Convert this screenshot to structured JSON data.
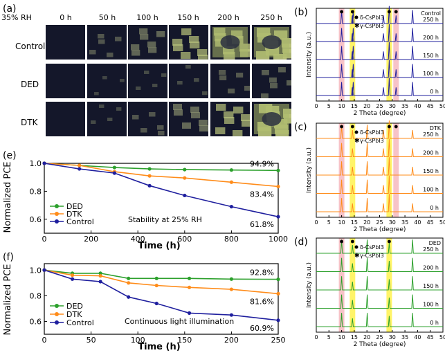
{
  "panel_a": {
    "letter": "(a)",
    "rh_label": "35% RH",
    "times": [
      "0 h",
      "50 h",
      "100 h",
      "150 h",
      "200 h",
      "250 h"
    ],
    "rows": [
      "Control",
      "DED",
      "DTK"
    ]
  },
  "chart_data": [
    {
      "id": "e",
      "type": "line",
      "letter": "(e)",
      "ylabel": "Normalized PCE",
      "xlabel": "Time (h)",
      "xlim": [
        0,
        1000
      ],
      "ylim": [
        0.5,
        1.0
      ],
      "xticks": [
        "0",
        "200",
        "400",
        "600",
        "800",
        "1000"
      ],
      "yticks": [
        "0.6",
        "0.8",
        "1.0"
      ],
      "annotation": "Stability at 25% RH",
      "series": [
        {
          "name": "DED",
          "color": "#2ca02c",
          "x": [
            0,
            150,
            300,
            450,
            600,
            800,
            1000
          ],
          "values": [
            1.0,
            0.985,
            0.97,
            0.96,
            0.955,
            0.952,
            0.949
          ],
          "end_label": "94.9%"
        },
        {
          "name": "DTK",
          "color": "#ff8c1a",
          "x": [
            0,
            150,
            300,
            450,
            600,
            800,
            1000
          ],
          "values": [
            1.0,
            0.985,
            0.94,
            0.91,
            0.895,
            0.865,
            0.834
          ],
          "end_label": "83.4%"
        },
        {
          "name": "Control",
          "color": "#1f1f9e",
          "x": [
            0,
            150,
            300,
            450,
            600,
            800,
            1000
          ],
          "values": [
            1.0,
            0.96,
            0.93,
            0.84,
            0.77,
            0.69,
            0.618
          ],
          "end_label": "61.8%"
        }
      ]
    },
    {
      "id": "f",
      "type": "line",
      "letter": "(f)",
      "ylabel": "Normalized PCE",
      "xlabel": "Time (h)",
      "xlim": [
        0,
        250
      ],
      "ylim": [
        0.5,
        1.05
      ],
      "xticks": [
        "0",
        "50",
        "100",
        "150",
        "200",
        "250"
      ],
      "yticks": [
        "0.6",
        "0.8",
        "1.0"
      ],
      "annotation": "Continuous light illumination",
      "series": [
        {
          "name": "DED",
          "color": "#2ca02c",
          "x": [
            0,
            30,
            60,
            90,
            120,
            155,
            200,
            250
          ],
          "values": [
            1.0,
            0.975,
            0.975,
            0.935,
            0.935,
            0.935,
            0.93,
            0.928
          ],
          "end_label": "92.8%"
        },
        {
          "name": "DTK",
          "color": "#ff8c1a",
          "x": [
            0,
            30,
            60,
            90,
            120,
            155,
            200,
            250
          ],
          "values": [
            1.0,
            0.96,
            0.955,
            0.9,
            0.88,
            0.865,
            0.85,
            0.816
          ],
          "end_label": "81.6%"
        },
        {
          "name": "Control",
          "color": "#1f1f9e",
          "x": [
            0,
            30,
            60,
            90,
            120,
            155,
            200,
            250
          ],
          "values": [
            1.0,
            0.93,
            0.91,
            0.79,
            0.74,
            0.665,
            0.65,
            0.609
          ],
          "end_label": "60.9%"
        }
      ]
    },
    {
      "id": "b",
      "type": "line",
      "letter": "(b)",
      "tag": "Control",
      "color": "#1f1f9e",
      "ylabel": "Intensity (a.u.)",
      "xlabel": "2 Theta (degree)",
      "xlim": [
        0,
        50
      ],
      "xticks": [
        "0",
        "5",
        "10",
        "15",
        "20",
        "25",
        "30",
        "35",
        "40",
        "45",
        "50"
      ],
      "legend": [
        "δ-CsPbI3",
        "γ-CsPbI3"
      ],
      "traces": [
        "250 h",
        "200 h",
        "150 h",
        "100 h",
        "0 h"
      ],
      "peaks": [
        10.0,
        14.2,
        14.6,
        26.5,
        28.8,
        31.5,
        38.0
      ],
      "pink_bands": [
        10.0,
        31.5
      ],
      "yellow_bands": [
        14.3,
        28.8
      ]
    },
    {
      "id": "c",
      "type": "line",
      "letter": "(c)",
      "tag": "DTK",
      "color": "#ff8c1a",
      "ylabel": "Intensity (a.u.)",
      "xlabel": "2 Theta (degree)",
      "xlim": [
        0,
        50
      ],
      "xticks": [
        "0",
        "5",
        "10",
        "15",
        "20",
        "25",
        "30",
        "35",
        "40",
        "45",
        "50"
      ],
      "legend": [
        "δ-CsPbI3",
        "γ-CsPbI3"
      ],
      "traces": [
        "250 h",
        "200 h",
        "150 h",
        "100 h",
        "0 h"
      ],
      "peaks": [
        10.0,
        14.3,
        20.1,
        26.5,
        28.8,
        38.0
      ],
      "pink_bands": [
        10.0,
        31.5
      ],
      "yellow_bands": [
        14.3,
        28.8
      ]
    },
    {
      "id": "d",
      "type": "line",
      "letter": "(d)",
      "tag": "DED",
      "color": "#2ca02c",
      "ylabel": "Intensity (a.u.)",
      "xlabel": "2 Theta (degree)",
      "xlim": [
        0,
        50
      ],
      "xticks": [
        "0",
        "5",
        "10",
        "15",
        "20",
        "25",
        "30",
        "35",
        "40",
        "45",
        "50"
      ],
      "legend": [
        "δ-CsPbI3",
        "γ-CsPbI3"
      ],
      "traces": [
        "250 h",
        "200 h",
        "150 h",
        "100 h",
        "0 h"
      ],
      "peaks": [
        10.0,
        14.3,
        20.1,
        28.8,
        38.0
      ],
      "pink_bands": [
        10.0
      ],
      "yellow_bands": [
        14.3,
        28.8
      ]
    }
  ]
}
